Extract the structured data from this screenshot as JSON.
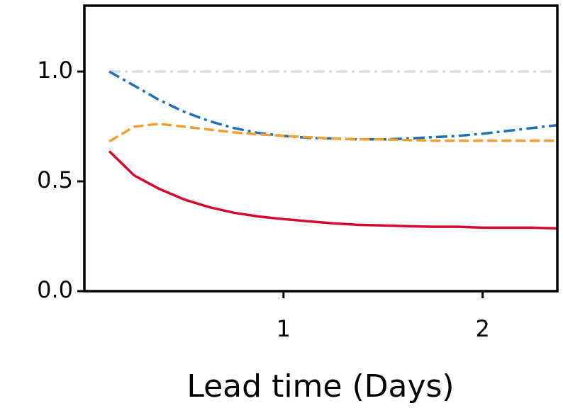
{
  "chart_data": {
    "type": "line",
    "xlabel": "Lead time (Days)",
    "x": [
      0.125,
      0.25,
      0.375,
      0.5,
      0.625,
      0.75,
      0.875,
      1.0,
      1.125,
      1.25,
      1.375,
      1.5,
      1.625,
      1.75,
      1.875,
      2.0,
      2.125,
      2.25,
      2.375
    ],
    "series": [
      {
        "color": "#dddddd",
        "linestyle": "dashdot",
        "values": [
          1,
          1,
          1,
          1,
          1,
          1,
          1,
          1,
          1,
          1,
          1,
          1,
          1,
          1,
          1,
          1,
          1,
          1,
          1
        ]
      },
      {
        "color": "#1f6fb4",
        "linestyle": "dashdot",
        "values": [
          1.0,
          0.936,
          0.871,
          0.817,
          0.775,
          0.743,
          0.72,
          0.707,
          0.698,
          0.695,
          0.691,
          0.691,
          0.695,
          0.701,
          0.707,
          0.717,
          0.73,
          0.743,
          0.756
        ]
      },
      {
        "color": "#f0a030",
        "linestyle": "dashed",
        "values": [
          0.682,
          0.749,
          0.762,
          0.749,
          0.736,
          0.723,
          0.714,
          0.707,
          0.701,
          0.695,
          0.691,
          0.691,
          0.688,
          0.685,
          0.685,
          0.685,
          0.685,
          0.685,
          0.685
        ]
      },
      {
        "color": "#d6092e",
        "linestyle": "solid",
        "values": [
          0.637,
          0.527,
          0.466,
          0.418,
          0.383,
          0.357,
          0.34,
          0.328,
          0.318,
          0.309,
          0.302,
          0.299,
          0.296,
          0.293,
          0.293,
          0.289,
          0.289,
          0.289,
          0.286
        ]
      }
    ],
    "xlim": [
      0,
      2.375
    ],
    "xticks": [
      1,
      2
    ],
    "ylim": [
      0,
      1.3
    ],
    "yticks": [
      {
        "value": 0,
        "label": "0.0"
      },
      {
        "value": 0.5,
        "label": "0.5"
      },
      {
        "value": 1,
        "label": "1.0"
      }
    ]
  }
}
